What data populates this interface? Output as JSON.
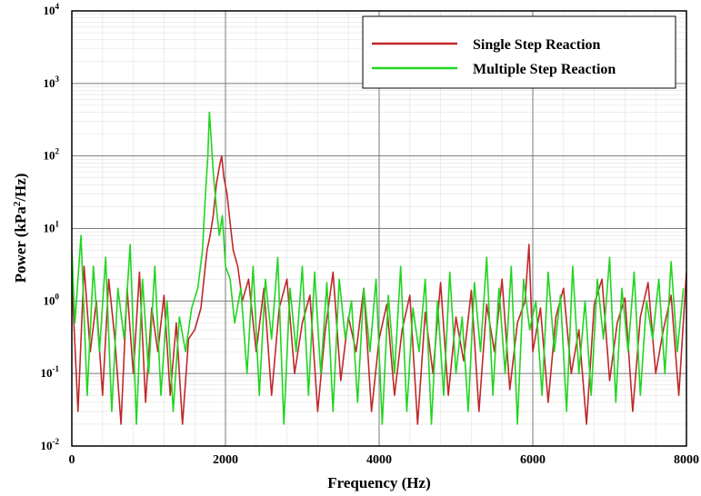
{
  "chart_data": {
    "type": "line",
    "xlabel": "Frequency (Hz)",
    "ylabel": {
      "base": "Power (kPa",
      "sup": "2",
      "tail": "/Hz)"
    },
    "xlim": [
      0,
      8000
    ],
    "ylim": [
      0.01,
      10000
    ],
    "yscale": "log",
    "grid": true,
    "legend_position": "top-right",
    "x_ticks": [
      "0",
      "2000",
      "4000",
      "6000",
      "8000"
    ],
    "y_ticks": [
      {
        "base": "10",
        "exp": "-2"
      },
      {
        "base": "10",
        "exp": "-1"
      },
      {
        "base": "10",
        "exp": "0"
      },
      {
        "base": "10",
        "exp": "1"
      },
      {
        "base": "10",
        "exp": "2"
      },
      {
        "base": "10",
        "exp": "3"
      },
      {
        "base": "10",
        "exp": "4"
      }
    ],
    "series": [
      {
        "name": "Single Step Reaction",
        "color": "#c0282a",
        "x": [
          0,
          80,
          160,
          240,
          320,
          400,
          480,
          560,
          640,
          720,
          800,
          880,
          960,
          1040,
          1120,
          1200,
          1280,
          1360,
          1440,
          1520,
          1600,
          1680,
          1720,
          1760,
          1800,
          1840,
          1880,
          1920,
          1950,
          1980,
          2020,
          2060,
          2100,
          2160,
          2220,
          2300,
          2400,
          2500,
          2600,
          2700,
          2800,
          2900,
          3000,
          3100,
          3200,
          3300,
          3400,
          3500,
          3600,
          3700,
          3800,
          3900,
          4000,
          4100,
          4200,
          4300,
          4400,
          4500,
          4600,
          4700,
          4800,
          4900,
          5000,
          5100,
          5200,
          5300,
          5400,
          5500,
          5600,
          5700,
          5800,
          5900,
          5950,
          6000,
          6100,
          6200,
          6300,
          6400,
          6500,
          6600,
          6700,
          6800,
          6900,
          7000,
          7100,
          7200,
          7300,
          7400,
          7500,
          7600,
          7700,
          7800,
          7900,
          8000
        ],
        "y": [
          2.0,
          0.03,
          3.0,
          0.2,
          1.0,
          0.05,
          2.0,
          0.3,
          0.02,
          1.5,
          0.1,
          2.5,
          0.04,
          0.8,
          0.2,
          1.2,
          0.05,
          0.5,
          0.02,
          0.3,
          0.4,
          0.8,
          2.0,
          5.0,
          8.0,
          15.0,
          40.0,
          70.0,
          100.0,
          50.0,
          30.0,
          12.0,
          5.0,
          3.0,
          1.0,
          2.0,
          0.2,
          1.5,
          0.05,
          0.8,
          2.0,
          0.1,
          0.5,
          1.2,
          0.03,
          0.4,
          2.5,
          0.08,
          0.6,
          0.2,
          1.5,
          0.03,
          0.3,
          0.9,
          0.05,
          0.4,
          1.2,
          0.02,
          0.7,
          0.1,
          1.8,
          0.05,
          0.6,
          0.15,
          1.4,
          0.03,
          0.9,
          0.2,
          2.0,
          0.06,
          0.5,
          1.0,
          6.0,
          0.2,
          0.8,
          0.04,
          0.6,
          1.5,
          0.1,
          0.4,
          0.02,
          0.9,
          2.0,
          0.08,
          0.5,
          1.1,
          0.03,
          0.6,
          1.8,
          0.1,
          0.4,
          1.2,
          0.05,
          2.5
        ]
      },
      {
        "name": "Multiple Step Reaction",
        "color": "#22d522",
        "x": [
          0,
          40,
          120,
          200,
          280,
          360,
          440,
          520,
          600,
          680,
          760,
          840,
          920,
          1000,
          1080,
          1160,
          1240,
          1320,
          1400,
          1480,
          1560,
          1640,
          1700,
          1740,
          1770,
          1790,
          1810,
          1840,
          1880,
          1920,
          1960,
          2000,
          2060,
          2120,
          2200,
          2280,
          2360,
          2440,
          2520,
          2600,
          2680,
          2760,
          2840,
          2920,
          3000,
          3080,
          3160,
          3240,
          3320,
          3400,
          3480,
          3560,
          3640,
          3720,
          3800,
          3880,
          3960,
          4040,
          4120,
          4200,
          4280,
          4360,
          4440,
          4520,
          4600,
          4680,
          4760,
          4840,
          4920,
          5000,
          5080,
          5160,
          5240,
          5320,
          5400,
          5480,
          5560,
          5640,
          5720,
          5800,
          5880,
          5960,
          6040,
          6120,
          6200,
          6280,
          6360,
          6440,
          6520,
          6600,
          6680,
          6760,
          6840,
          6920,
          7000,
          7080,
          7160,
          7240,
          7320,
          7400,
          7480,
          7560,
          7640,
          7720,
          7800,
          7880,
          7960
        ],
        "y": [
          5.0,
          0.5,
          8.0,
          0.05,
          3.0,
          0.2,
          4.0,
          0.03,
          1.5,
          0.3,
          6.0,
          0.02,
          2.0,
          0.1,
          3.0,
          0.05,
          1.0,
          0.03,
          0.6,
          0.2,
          0.8,
          1.5,
          5.0,
          30.0,
          100.0,
          400.0,
          200.0,
          60.0,
          20.0,
          8.0,
          15.0,
          3.0,
          2.0,
          0.5,
          1.5,
          0.1,
          3.0,
          0.05,
          2.0,
          0.3,
          4.0,
          0.02,
          1.5,
          0.2,
          3.0,
          0.05,
          2.5,
          0.1,
          1.8,
          0.03,
          2.0,
          0.3,
          1.0,
          0.04,
          1.5,
          0.2,
          2.0,
          0.02,
          1.2,
          0.1,
          3.0,
          0.03,
          0.8,
          0.2,
          2.0,
          0.02,
          1.0,
          0.05,
          2.5,
          0.1,
          0.6,
          0.03,
          1.8,
          0.2,
          4.0,
          0.05,
          1.5,
          0.1,
          3.0,
          0.02,
          2.0,
          0.4,
          1.0,
          0.05,
          2.5,
          0.2,
          1.2,
          0.03,
          3.0,
          0.1,
          1.0,
          0.05,
          2.0,
          0.3,
          4.0,
          0.04,
          1.5,
          0.2,
          2.5,
          0.05,
          1.0,
          0.3,
          2.0,
          0.1,
          3.5,
          0.2,
          1.5
        ]
      }
    ]
  }
}
